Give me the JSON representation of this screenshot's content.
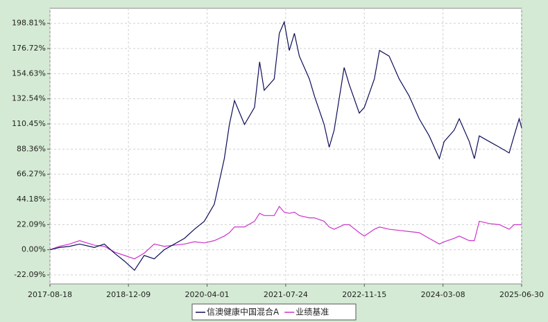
{
  "chart_data": {
    "type": "line",
    "x": [
      "2017-08-18",
      "2017-10-15",
      "2017-12-15",
      "2018-02-15",
      "2018-05-15",
      "2018-07-15",
      "2018-09-15",
      "2018-11-15",
      "2019-01-15",
      "2019-03-15",
      "2019-05-15",
      "2019-07-15",
      "2019-09-15",
      "2019-11-15",
      "2020-01-15",
      "2020-03-15",
      "2020-05-15",
      "2020-07-15",
      "2020-08-15",
      "2020-09-15",
      "2020-11-15",
      "2021-01-15",
      "2021-02-15",
      "2021-03-15",
      "2021-05-15",
      "2021-06-15",
      "2021-07-15",
      "2021-08-15",
      "2021-09-15",
      "2021-10-15",
      "2021-12-15",
      "2022-01-15",
      "2022-03-15",
      "2022-04-15",
      "2022-05-15",
      "2022-07-15",
      "2022-08-15",
      "2022-10-15",
      "2022-11-15",
      "2023-01-15",
      "2023-02-15",
      "2023-04-15",
      "2023-06-15",
      "2023-08-15",
      "2023-10-15",
      "2023-12-15",
      "2024-02-15",
      "2024-03-15",
      "2024-05-15",
      "2024-06-15",
      "2024-08-15",
      "2024-09-15",
      "2024-10-15",
      "2024-12-15",
      "2025-02-15",
      "2025-04-15",
      "2025-05-15",
      "2025-06-15",
      "2025-06-30"
    ],
    "series": [
      {
        "name": "信澳健康中国混合A",
        "color": "#0c0c5a",
        "values": [
          0,
          2,
          3,
          5,
          2,
          5,
          -3,
          -10,
          -18,
          -5,
          -8,
          0,
          5,
          10,
          18,
          25,
          40,
          80,
          110,
          131,
          110,
          125,
          165,
          140,
          150,
          190,
          200,
          175,
          190,
          170,
          150,
          135,
          110,
          90,
          105,
          160,
          145,
          120,
          125,
          150,
          175,
          170,
          150,
          135,
          115,
          100,
          80,
          95,
          105,
          115,
          95,
          80,
          100,
          95,
          90,
          85,
          100,
          115,
          107
        ]
      },
      {
        "name": "业绩基准",
        "color": "#cc33cc",
        "values": [
          0,
          3,
          5,
          8,
          4,
          3,
          -2,
          -5,
          -8,
          -3,
          5,
          3,
          4,
          5,
          7,
          6,
          8,
          12,
          15,
          20,
          20,
          25,
          32,
          30,
          30,
          38,
          33,
          32,
          33,
          30,
          28,
          28,
          25,
          20,
          18,
          22,
          22,
          15,
          12,
          18,
          20,
          18,
          17,
          16,
          15,
          10,
          5,
          7,
          10,
          12,
          8,
          8,
          25,
          23,
          22,
          18,
          22,
          22,
          22
        ]
      }
    ],
    "xlim": [
      "2017-08-18",
      "2025-06-30"
    ],
    "xticks": [
      "2017-08-18",
      "2018-12-09",
      "2020-04-01",
      "2021-07-24",
      "2022-11-15",
      "2024-03-08",
      "2025-06-30"
    ],
    "ylim": [
      -30,
      212
    ],
    "yticks": [
      {
        "value": -22.09,
        "label": "-22.09%"
      },
      {
        "value": 0,
        "label": "0.00%"
      },
      {
        "value": 22.09,
        "label": "22.09%"
      },
      {
        "value": 44.18,
        "label": "44.18%"
      },
      {
        "value": 66.27,
        "label": "66.27%"
      },
      {
        "value": 88.36,
        "label": "88.36%"
      },
      {
        "value": 110.45,
        "label": "110.45%"
      },
      {
        "value": 132.54,
        "label": "132.54%"
      },
      {
        "value": 154.63,
        "label": "154.63%"
      },
      {
        "value": 176.72,
        "label": "176.72%"
      },
      {
        "value": 198.81,
        "label": "198.81%"
      }
    ],
    "grid": true
  }
}
